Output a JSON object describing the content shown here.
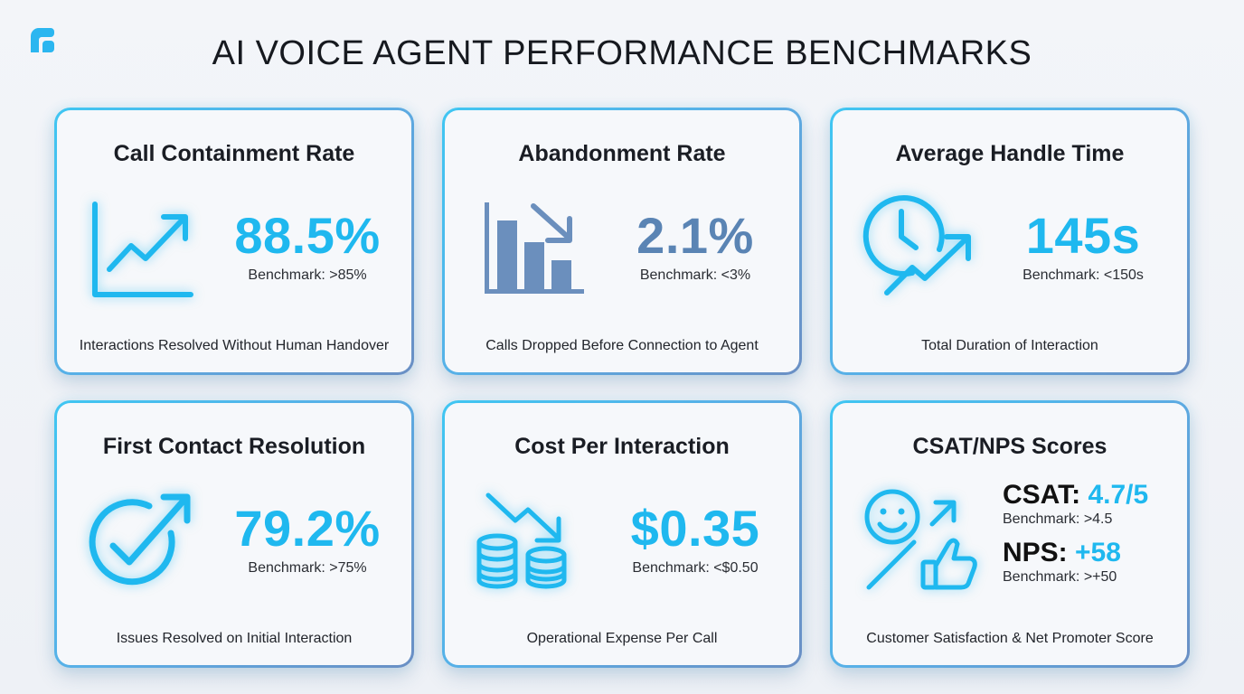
{
  "page": {
    "title": "AI VOICE AGENT PERFORMANCE BENCHMARKS"
  },
  "colors": {
    "accent": "#1fb8ef",
    "secondary": "#5a84b4",
    "border_start": "#3fc6f2",
    "border_end": "#6a8fc4"
  },
  "cards": [
    {
      "title": "Call Containment Rate",
      "icon": "trend-up-chart-icon",
      "value": "88.5%",
      "benchmark": "Benchmark: >85%",
      "description": "Interactions Resolved Without Human Handover",
      "value_color": "#1fb8ef"
    },
    {
      "title": "Abandonment Rate",
      "icon": "bar-chart-down-icon",
      "value": "2.1%",
      "benchmark": "Benchmark: <3%",
      "description": "Calls Dropped Before Connection to Agent",
      "value_color": "#5a84b4"
    },
    {
      "title": "Average Handle Time",
      "icon": "clock-trend-icon",
      "value": "145s",
      "benchmark": "Benchmark: <150s",
      "description": "Total Duration of Interaction",
      "value_color": "#1fb8ef"
    },
    {
      "title": "First Contact Resolution",
      "icon": "check-circle-arrow-icon",
      "value": "79.2%",
      "benchmark": "Benchmark: >75%",
      "description": "Issues Resolved on Initial Interaction",
      "value_color": "#1fb8ef"
    },
    {
      "title": "Cost Per Interaction",
      "icon": "coins-down-icon",
      "value": "$0.35",
      "benchmark": "Benchmark: <$0.50",
      "description": "Operational Expense Per Call",
      "value_color": "#1fb8ef"
    },
    {
      "title": "CSAT/NPS Scores",
      "icon": "smiley-thumbs-up-icon",
      "description": "Customer Satisfaction & Net Promoter Score",
      "csat_label": "CSAT:",
      "csat_value": "4.7/5",
      "csat_benchmark": "Benchmark: >4.5",
      "nps_label": "NPS:",
      "nps_value": "+58",
      "nps_benchmark": "Benchmark: >+50"
    }
  ]
}
